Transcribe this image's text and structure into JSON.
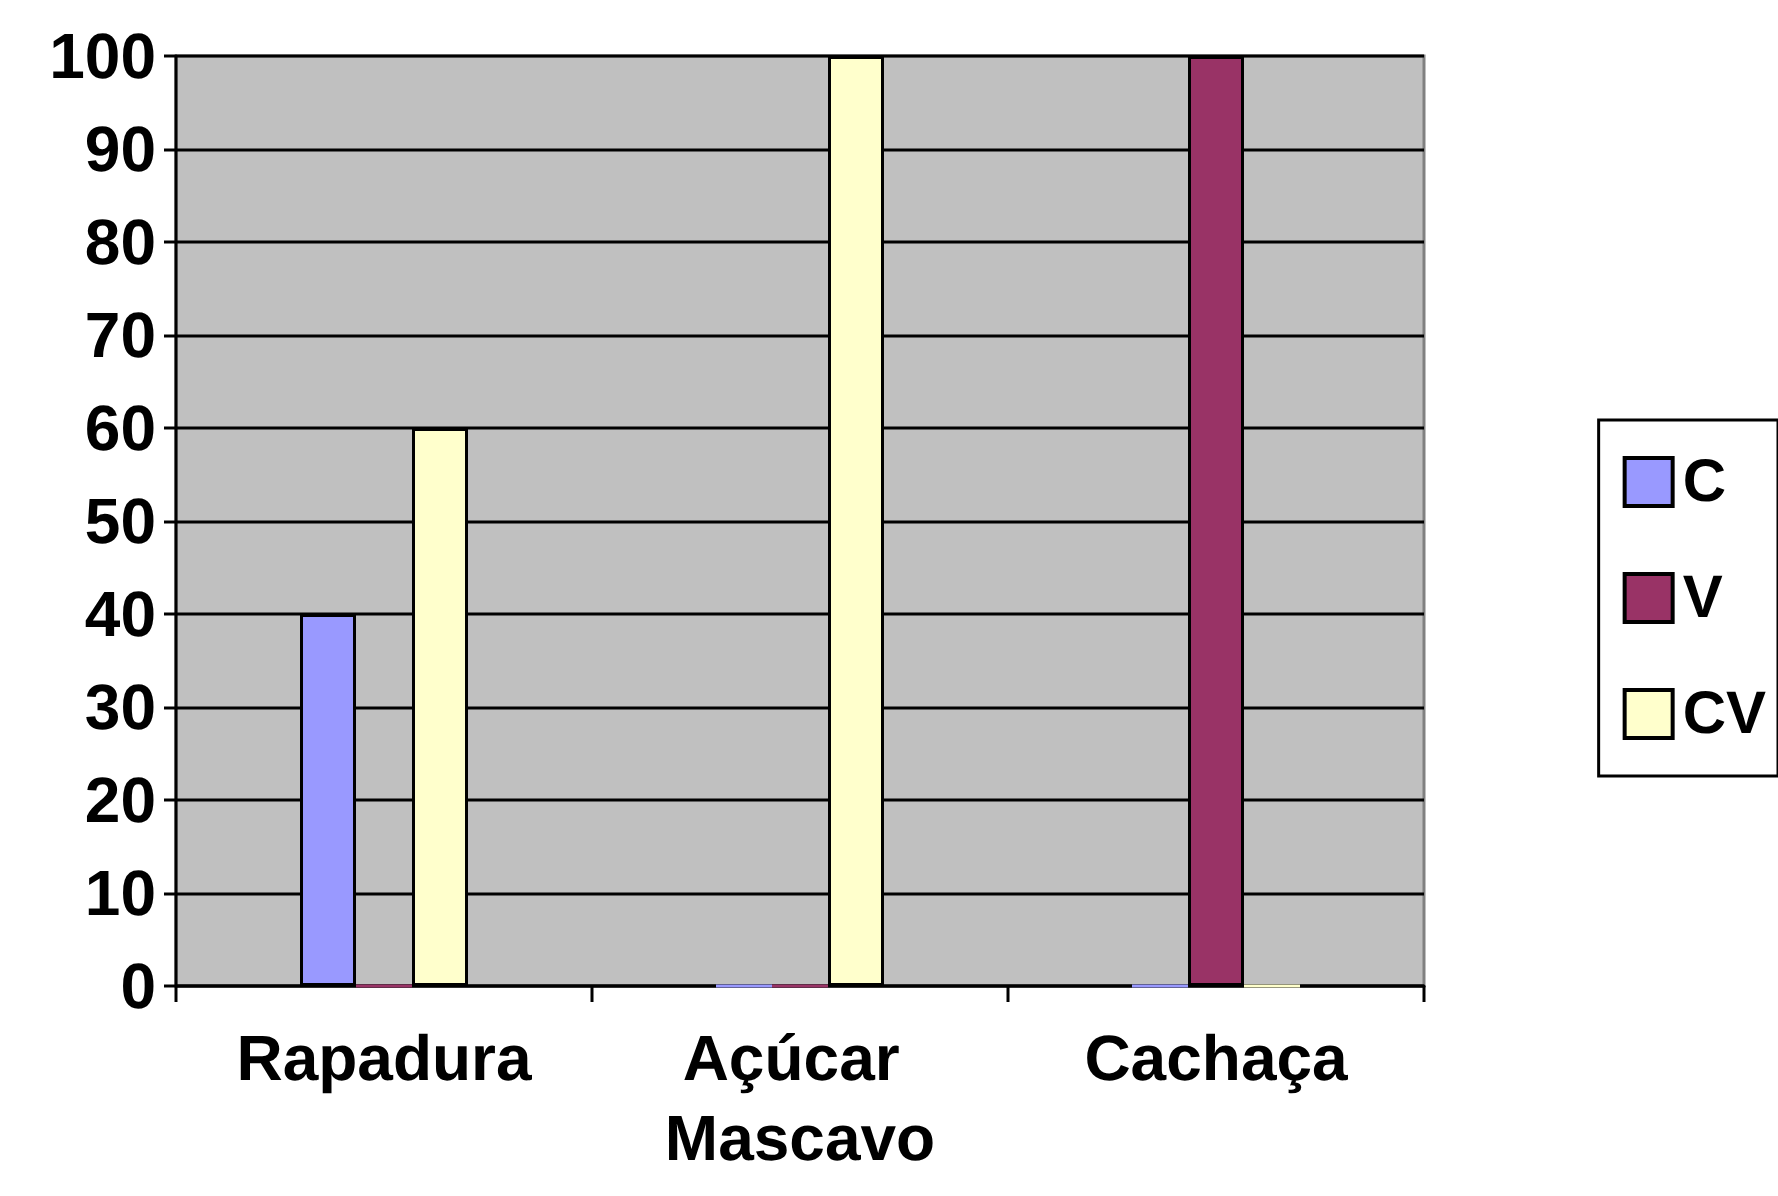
{
  "chart_data": {
    "type": "bar",
    "categories": [
      "Rapadura",
      "Açúcar Mascavo",
      "Cachaça"
    ],
    "series": [
      {
        "name": "C",
        "color": "#9999ff",
        "values": [
          40,
          0,
          0
        ]
      },
      {
        "name": "V",
        "color": "#993366",
        "values": [
          0,
          0,
          100
        ]
      },
      {
        "name": "CV",
        "color": "#ffffcc",
        "values": [
          60,
          100,
          0
        ]
      }
    ],
    "ylim": [
      0,
      100
    ],
    "yticks": [
      0,
      10,
      20,
      30,
      40,
      50,
      60,
      70,
      80,
      90,
      100
    ],
    "grid": "y",
    "legend": "right"
  }
}
